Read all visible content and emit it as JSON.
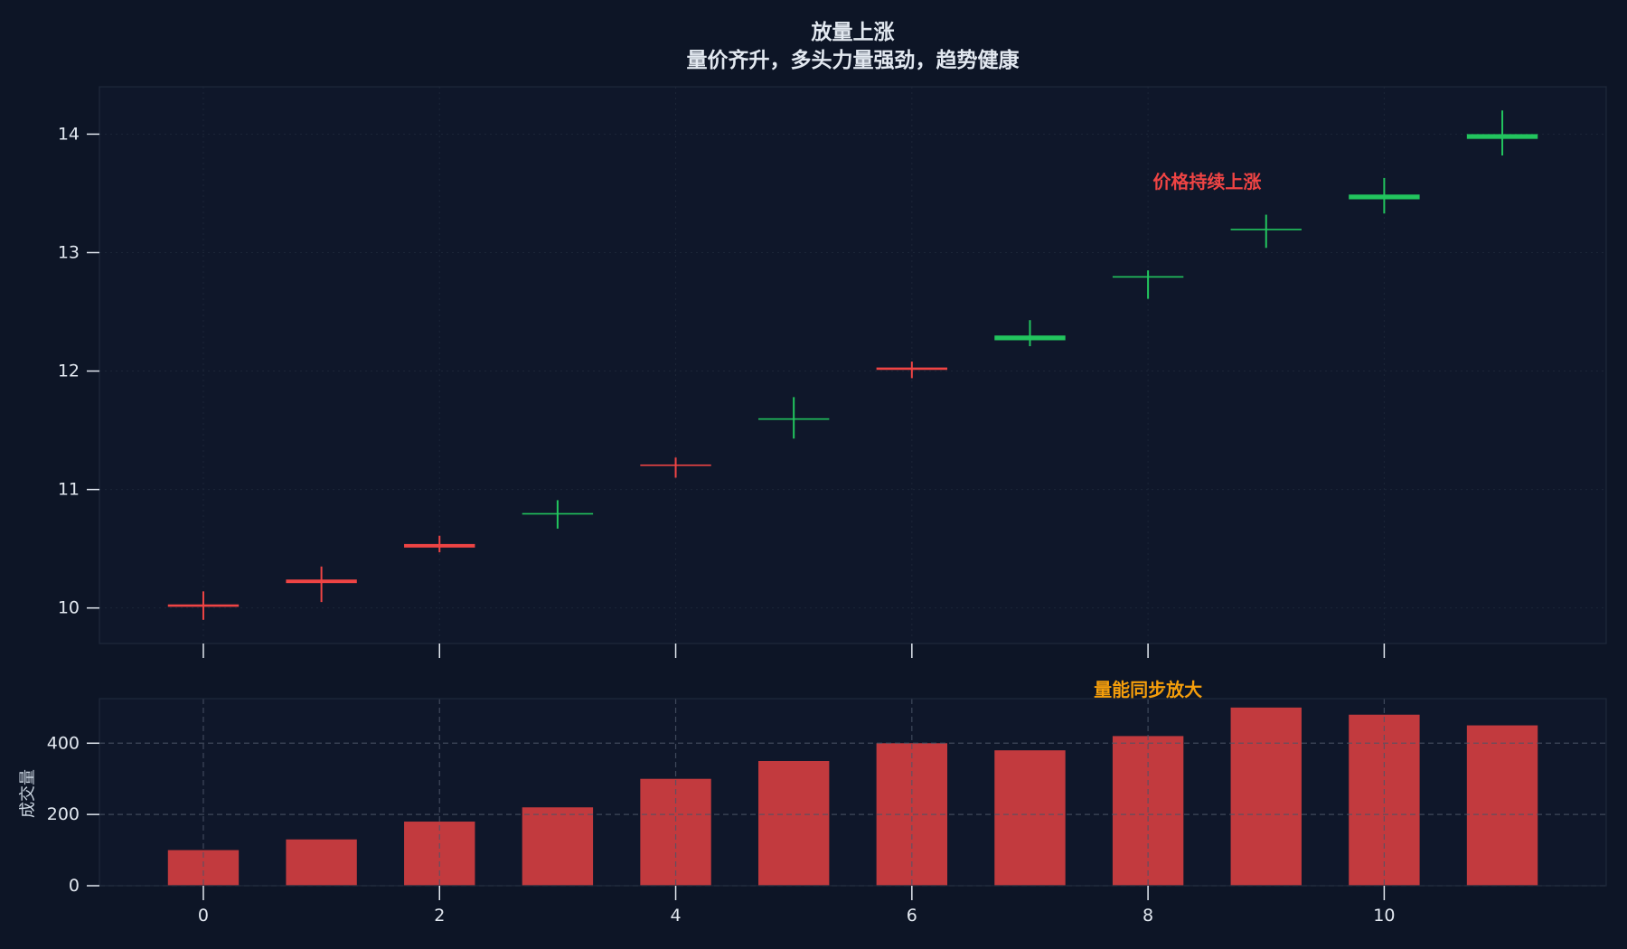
{
  "colors": {
    "figure_background": "#0d1526",
    "plot_background": "#0f172a",
    "frame": "#1e293b",
    "tick": "#e2e8f0",
    "grid_price": "#1c2638",
    "grid_volume": "#4b5568",
    "rising": "#ef4444",
    "falling": "#22c55e",
    "volume_bar": "#ef4444",
    "price_annotation": "#ef4444",
    "volume_annotation": "#f59e0b"
  },
  "chart_data": [
    {
      "type": "candlestick",
      "title": "放量上涨",
      "subtitle": "量价齐升，多头力量强劲，趋势健康",
      "x": [
        0,
        1,
        2,
        3,
        4,
        5,
        6,
        7,
        8,
        9,
        10,
        11
      ],
      "open": [
        10.01,
        10.21,
        10.51,
        10.8,
        11.2,
        11.6,
        12.01,
        12.3,
        12.8,
        13.2,
        13.49,
        14.0
      ],
      "high": [
        10.14,
        10.35,
        10.61,
        10.91,
        11.27,
        11.78,
        12.08,
        12.43,
        12.85,
        13.32,
        13.63,
        14.2
      ],
      "low": [
        9.9,
        10.05,
        10.47,
        10.67,
        11.1,
        11.43,
        11.94,
        12.21,
        12.61,
        13.04,
        13.33,
        13.82
      ],
      "close": [
        10.03,
        10.24,
        10.54,
        10.79,
        11.21,
        11.59,
        12.03,
        12.26,
        12.79,
        13.19,
        13.45,
        13.96
      ],
      "xlim": [
        -0.88,
        11.88
      ],
      "ylim": [
        9.7,
        14.4
      ],
      "x_ticks": [
        0,
        2,
        4,
        6,
        8,
        10
      ],
      "y_ticks": [
        10,
        11,
        12,
        13,
        14
      ],
      "grid": true,
      "annotations": [
        {
          "text": "价格持续上涨",
          "x": 8.5,
          "y": 13.6
        }
      ]
    },
    {
      "type": "bar",
      "x": [
        0,
        1,
        2,
        3,
        4,
        5,
        6,
        7,
        8,
        9,
        10,
        11
      ],
      "values": [
        100,
        130,
        180,
        220,
        300,
        350,
        400,
        380,
        420,
        500,
        480,
        450
      ],
      "ylabel": "成交量",
      "xlim": [
        -0.88,
        11.88
      ],
      "ylim": [
        0,
        525
      ],
      "x_ticks": [
        0,
        2,
        4,
        6,
        8,
        10
      ],
      "y_ticks": [
        0,
        200,
        400
      ],
      "grid": true,
      "annotations": [
        {
          "text": "量能同步放大",
          "x": 8,
          "y": 550
        }
      ]
    }
  ]
}
